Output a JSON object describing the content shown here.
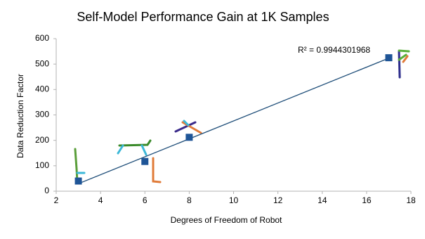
{
  "chart_data": {
    "type": "scatter",
    "title": "Self-Model Performance Gain at 1K Samples",
    "x_label": "Degrees of Freedom of Robot",
    "y_label": "Data Reduction Factor",
    "x": [
      3,
      6,
      8,
      17
    ],
    "values": [
      40,
      117,
      212,
      525
    ],
    "color": "#1f5597",
    "trendline": true,
    "trendline_color": "#1f4e79",
    "annotation": "R² = 0.9944301968",
    "xlim": [
      2,
      18
    ],
    "xticks": [
      2,
      4,
      6,
      8,
      10,
      12,
      14,
      16,
      18
    ],
    "ylim": [
      0,
      600
    ],
    "yticks": [
      0,
      100,
      200,
      300,
      400,
      500,
      600
    ],
    "grid": false
  }
}
